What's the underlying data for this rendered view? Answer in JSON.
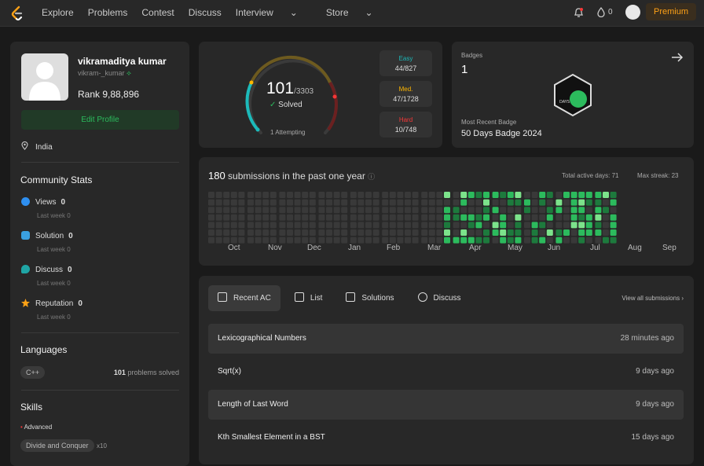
{
  "nav": {
    "items": [
      "Explore",
      "Problems",
      "Contest",
      "Discuss",
      "Interview"
    ],
    "store": "Store",
    "premium": "Premium",
    "coins": "0"
  },
  "profile": {
    "name": "vikramaditya kumar",
    "handle": "vikram-_kumar",
    "rank_label": "Rank",
    "rank": "9,88,896",
    "edit": "Edit Profile",
    "location": "India"
  },
  "community": {
    "title": "Community Stats",
    "stats": [
      {
        "label": "Views",
        "value": "0",
        "last": "Last week",
        "last_val": "0",
        "color": "#2e8ff0"
      },
      {
        "label": "Solution",
        "value": "0",
        "last": "Last week",
        "last_val": "0",
        "color": "#3aa0e0"
      },
      {
        "label": "Discuss",
        "value": "0",
        "last": "Last week",
        "last_val": "0",
        "color": "#1fa5a5"
      },
      {
        "label": "Reputation",
        "value": "0",
        "last": "Last week",
        "last_val": "0",
        "color": "#ffa116"
      }
    ]
  },
  "languages": {
    "title": "Languages",
    "lang": "C++",
    "count": "101",
    "suffix": "problems solved"
  },
  "skills": {
    "title": "Skills",
    "level": "Advanced",
    "topic": "Divide and Conquer",
    "topic_count": "x10"
  },
  "solved": {
    "count": "101",
    "total": "/3303",
    "label": "Solved",
    "attempting": "1 Attempting",
    "easy": {
      "label": "Easy",
      "value": "44/827",
      "color": "#1cbaba"
    },
    "medium": {
      "label": "Med.",
      "value": "47/1728",
      "color": "#ffb700"
    },
    "hard": {
      "label": "Hard",
      "value": "10/748",
      "color": "#f63737"
    }
  },
  "badges": {
    "label": "Badges",
    "count": "1",
    "recent_label": "Most Recent Badge",
    "recent": "50 Days Badge 2024",
    "badge_text": "DAYS"
  },
  "heatmap": {
    "count": "180",
    "title": "submissions in the past one year",
    "active": "Total active days: 71",
    "streak": "Max streak: 23",
    "months": [
      "Oct",
      "Nov",
      "Dec",
      "Jan",
      "Feb",
      "Mar",
      "Apr",
      "May",
      "Jun",
      "Jul",
      "Aug",
      "Sep"
    ]
  },
  "submissions": {
    "tabs": [
      "Recent AC",
      "List",
      "Solutions",
      "Discuss"
    ],
    "view_all": "View all submissions",
    "rows": [
      {
        "title": "Lexicographical Numbers",
        "ago": "28 minutes ago"
      },
      {
        "title": "Sqrt(x)",
        "ago": "9 days ago"
      },
      {
        "title": "Length of Last Word",
        "ago": "9 days ago"
      },
      {
        "title": "Kth Smallest Element in a BST",
        "ago": "15 days ago"
      }
    ]
  }
}
